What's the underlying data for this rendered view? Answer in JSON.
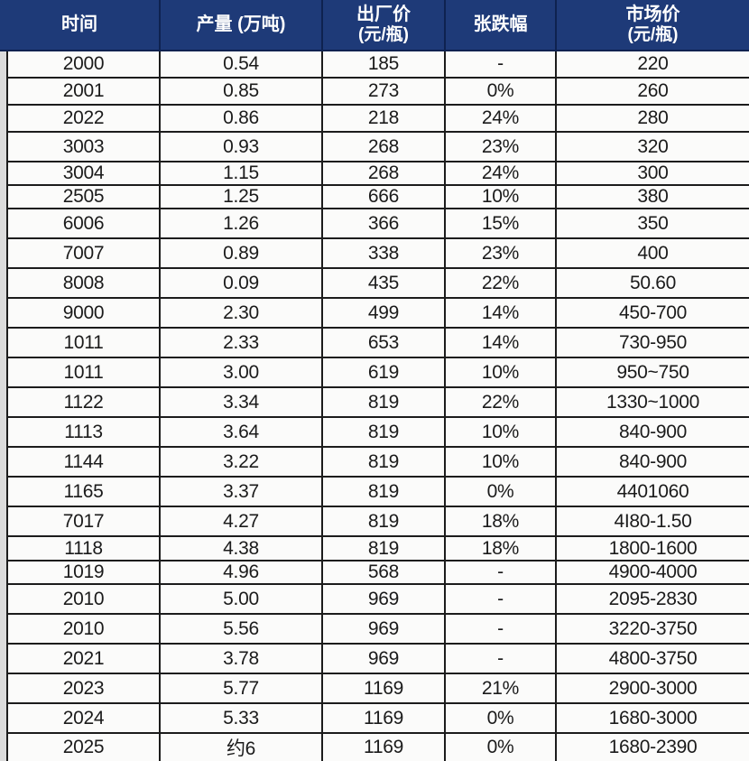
{
  "chart_data": {
    "type": "table",
    "columns": [
      {
        "label": "时间",
        "sublabel": ""
      },
      {
        "label": "产量 (万吨)",
        "sublabel": ""
      },
      {
        "label": "出厂价",
        "sublabel": "(元/瓶)"
      },
      {
        "label": "张跌幅",
        "sublabel": ""
      },
      {
        "label": "市场价",
        "sublabel": "(元/瓶)"
      }
    ],
    "rows": [
      [
        "2000",
        "0.54",
        "185",
        "-",
        "220"
      ],
      [
        "2001",
        "0.85",
        "273",
        "0%",
        "260"
      ],
      [
        "2022",
        "0.86",
        "218",
        "24%",
        "280"
      ],
      [
        "3003",
        "0.93",
        "268",
        "23%",
        "320"
      ],
      [
        "3004",
        "1.15",
        "268",
        "24%",
        "300"
      ],
      [
        "2505",
        "1.25",
        "666",
        "10%",
        "380"
      ],
      [
        "6006",
        "1.26",
        "366",
        "15%",
        "350"
      ],
      [
        "7007",
        "0.89",
        "338",
        "23%",
        "400"
      ],
      [
        "8008",
        "0.09",
        "435",
        "22%",
        "50.60"
      ],
      [
        "9000",
        "2.30",
        "499",
        "14%",
        "450-700"
      ],
      [
        "1011",
        "2.33",
        "653",
        "14%",
        "730-950"
      ],
      [
        "1011",
        "3.00",
        "619",
        "10%",
        "950~750"
      ],
      [
        "1122",
        "3.34",
        "819",
        "22%",
        "1330~1000"
      ],
      [
        "1113",
        "3.64",
        "819",
        "10%",
        "840-900"
      ],
      [
        "1144",
        "3.22",
        "819",
        "10%",
        "840-900"
      ],
      [
        "1165",
        "3.37",
        "819",
        "0%",
        "4401060"
      ],
      [
        "7017",
        "4.27",
        "819",
        "18%",
        "4I80-1.50"
      ],
      [
        "1118",
        "4.38",
        "819",
        "18%",
        "1800-1600"
      ],
      [
        "1019",
        "4.96",
        "568",
        "-",
        "4900-4000"
      ],
      [
        "2010",
        "5.00",
        "969",
        "-",
        "2095-2830"
      ],
      [
        "2010",
        "5.56",
        "969",
        "-",
        "3220-3750"
      ],
      [
        "2021",
        "3.78",
        "969",
        "-",
        "4800-3750"
      ],
      [
        "2023",
        "5.77",
        "1169",
        "21%",
        "2900-3000"
      ],
      [
        "2024",
        "5.33",
        "1169",
        "0%",
        "1680-3000"
      ],
      [
        "2025",
        "约6",
        "1169",
        "0%",
        "1680-2390"
      ]
    ]
  },
  "colors": {
    "header_bg": "#1e3a78",
    "header_text": "#ffffff",
    "body_bg": "#fbfbfa",
    "body_text": "#1b1b1b",
    "border": "#1c1c1c",
    "gutter": "#dcdcdc"
  }
}
